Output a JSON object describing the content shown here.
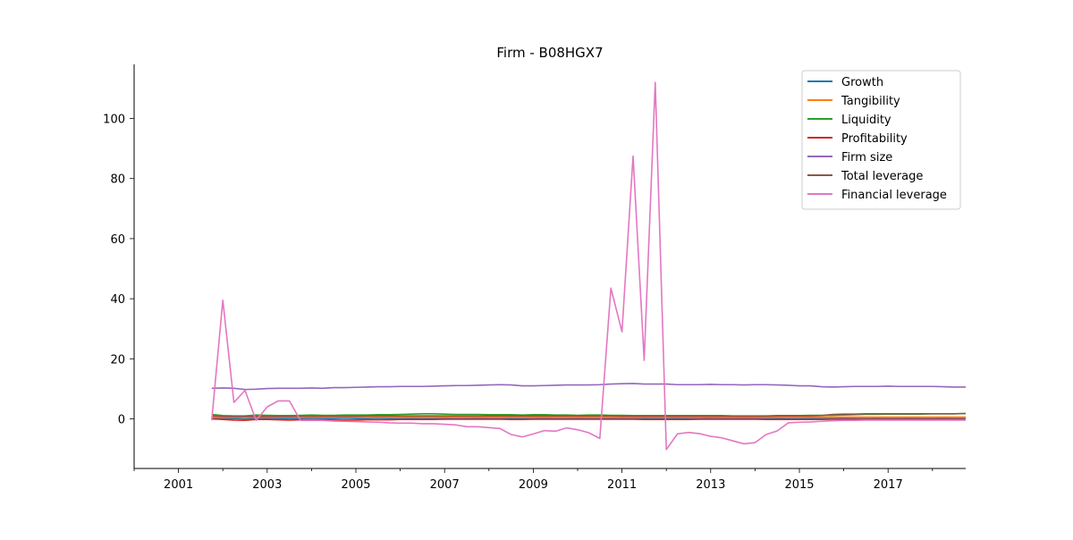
{
  "chart_data": {
    "type": "line",
    "title": "Firm - B08HGX7",
    "xlabel": "",
    "ylabel": "",
    "xlim": [
      2000.0,
      2018.75
    ],
    "ylim": [
      -16.5,
      118
    ],
    "x_ticks": [
      2001,
      2003,
      2005,
      2007,
      2009,
      2011,
      2013,
      2015,
      2017
    ],
    "x_minor_ticks": [
      2000,
      2002,
      2004,
      2006,
      2008,
      2010,
      2012,
      2014,
      2016,
      2018
    ],
    "y_ticks": [
      0,
      20,
      40,
      60,
      80,
      100
    ],
    "grid": false,
    "legend_position": "top-right",
    "x": [
      2001.75,
      2002.0,
      2002.25,
      2002.5,
      2002.75,
      2003.0,
      2003.25,
      2003.5,
      2003.75,
      2004.0,
      2004.25,
      2004.5,
      2004.75,
      2005.0,
      2005.25,
      2005.5,
      2005.75,
      2006.0,
      2006.25,
      2006.5,
      2006.75,
      2007.0,
      2007.25,
      2007.5,
      2007.75,
      2008.0,
      2008.25,
      2008.5,
      2008.75,
      2009.0,
      2009.25,
      2009.5,
      2009.75,
      2010.0,
      2010.25,
      2010.5,
      2010.75,
      2011.0,
      2011.25,
      2011.5,
      2011.75,
      2012.0,
      2012.25,
      2012.5,
      2012.75,
      2013.0,
      2013.25,
      2013.5,
      2013.75,
      2014.0,
      2014.25,
      2014.5,
      2014.75,
      2015.0,
      2015.25,
      2015.5,
      2015.75,
      2016.0,
      2016.25,
      2016.5,
      2016.75,
      2017.0,
      2017.25,
      2017.5,
      2017.75,
      2018.0,
      2018.25,
      2018.5,
      2018.75
    ],
    "series": [
      {
        "name": "Growth",
        "color": "#1f77b4",
        "values": [
          0.2,
          0.1,
          0.1,
          0.0,
          0.1,
          0.2,
          0.1,
          0.1,
          0.1,
          0.2,
          0.1,
          0.1,
          0.2,
          0.1,
          0.1,
          0.2,
          0.1,
          0.1,
          0.2,
          0.1,
          0.1,
          0.2,
          0.1,
          0.1,
          0.2,
          0.1,
          0.1,
          0.2,
          0.1,
          0.1,
          0.2,
          0.1,
          0.1,
          0.2,
          0.1,
          0.1,
          0.2,
          0.1,
          0.1,
          0.2,
          0.1,
          0.1,
          0.2,
          0.1,
          0.1,
          0.2,
          0.1,
          0.1,
          0.2,
          0.1,
          0.1,
          0.2,
          0.1,
          0.1,
          0.2,
          0.1,
          0.1,
          0.2,
          0.1,
          0.1,
          0.2,
          0.1,
          0.1,
          0.2,
          0.1,
          0.1,
          0.2,
          0.1,
          0.1
        ]
      },
      {
        "name": "Tangibility",
        "color": "#ff7f0e",
        "values": [
          0.6,
          0.5,
          0.5,
          0.5,
          0.5,
          0.6,
          0.6,
          0.6,
          0.6,
          0.6,
          0.6,
          0.6,
          0.6,
          0.6,
          0.6,
          0.6,
          0.6,
          0.6,
          0.6,
          0.6,
          0.6,
          0.6,
          0.6,
          0.6,
          0.6,
          0.6,
          0.6,
          0.6,
          0.6,
          0.6,
          0.6,
          0.6,
          0.6,
          0.6,
          0.6,
          0.6,
          0.6,
          0.6,
          0.6,
          0.6,
          0.6,
          0.6,
          0.6,
          0.6,
          0.6,
          0.6,
          0.6,
          0.6,
          0.6,
          0.6,
          0.6,
          0.6,
          0.6,
          0.6,
          0.6,
          0.6,
          0.6,
          0.6,
          0.6,
          0.6,
          0.6,
          0.6,
          0.6,
          0.6,
          0.6,
          0.6,
          0.6,
          0.6,
          0.6
        ]
      },
      {
        "name": "Liquidity",
        "color": "#2ca02c",
        "values": [
          1.5,
          1.1,
          1.0,
          1.0,
          1.3,
          1.2,
          1.1,
          1.1,
          1.2,
          1.3,
          1.2,
          1.2,
          1.3,
          1.3,
          1.3,
          1.4,
          1.4,
          1.5,
          1.6,
          1.7,
          1.7,
          1.6,
          1.5,
          1.5,
          1.5,
          1.4,
          1.4,
          1.4,
          1.3,
          1.4,
          1.4,
          1.3,
          1.3,
          1.2,
          1.3,
          1.3,
          1.2,
          1.2,
          1.1,
          1.1,
          1.1,
          1.1,
          1.1,
          1.1,
          1.1,
          1.1,
          1.1,
          1.0,
          1.0,
          1.0,
          1.0,
          1.1,
          1.1,
          1.1,
          1.2,
          1.2,
          1.2,
          1.3,
          1.4,
          1.5,
          1.5,
          1.6,
          1.6,
          1.6,
          1.6,
          1.7,
          1.7,
          1.7,
          1.8
        ]
      },
      {
        "name": "Profitability",
        "color": "#d62728",
        "values": [
          0.0,
          -0.2,
          -0.4,
          -0.5,
          -0.2,
          -0.2,
          -0.3,
          -0.4,
          -0.3,
          -0.3,
          -0.3,
          -0.4,
          -0.4,
          -0.4,
          -0.3,
          -0.3,
          -0.3,
          -0.2,
          -0.2,
          -0.2,
          -0.2,
          -0.1,
          -0.1,
          -0.1,
          -0.1,
          -0.1,
          -0.1,
          -0.2,
          -0.2,
          -0.1,
          -0.1,
          -0.1,
          -0.1,
          -0.1,
          -0.1,
          -0.1,
          -0.1,
          -0.1,
          -0.1,
          -0.2,
          -0.2,
          -0.2,
          -0.2,
          -0.2,
          -0.1,
          -0.1,
          -0.1,
          -0.1,
          -0.1,
          -0.1,
          -0.2,
          -0.2,
          -0.2,
          -0.2,
          -0.2,
          -0.2,
          -0.1,
          -0.1,
          -0.1,
          -0.1,
          -0.1,
          -0.1,
          -0.1,
          -0.1,
          -0.1,
          -0.1,
          -0.1,
          -0.1,
          -0.1
        ]
      },
      {
        "name": "Firm size",
        "color": "#9467bd",
        "values": [
          10.2,
          10.3,
          10.2,
          9.8,
          9.9,
          10.1,
          10.2,
          10.2,
          10.2,
          10.3,
          10.2,
          10.4,
          10.4,
          10.5,
          10.6,
          10.7,
          10.7,
          10.8,
          10.8,
          10.8,
          10.9,
          11.0,
          11.1,
          11.1,
          11.2,
          11.3,
          11.4,
          11.3,
          11.0,
          11.0,
          11.1,
          11.2,
          11.3,
          11.3,
          11.3,
          11.4,
          11.6,
          11.7,
          11.8,
          11.6,
          11.6,
          11.6,
          11.4,
          11.4,
          11.4,
          11.5,
          11.4,
          11.4,
          11.3,
          11.4,
          11.4,
          11.3,
          11.2,
          11.0,
          11.0,
          10.7,
          10.6,
          10.7,
          10.8,
          10.8,
          10.8,
          10.9,
          10.8,
          10.8,
          10.8,
          10.8,
          10.7,
          10.6,
          10.6
        ]
      },
      {
        "name": "Total leverage",
        "color": "#8c564b",
        "values": [
          1.0,
          0.8,
          0.8,
          0.8,
          0.8,
          0.8,
          0.8,
          0.8,
          0.9,
          0.9,
          0.9,
          0.9,
          0.9,
          0.9,
          1.0,
          1.0,
          1.0,
          1.0,
          1.0,
          1.0,
          1.0,
          1.0,
          1.0,
          1.0,
          1.0,
          1.0,
          1.0,
          1.0,
          1.0,
          1.0,
          1.0,
          1.0,
          1.0,
          1.0,
          1.0,
          1.0,
          1.0,
          0.9,
          0.9,
          0.9,
          0.9,
          0.9,
          0.9,
          0.9,
          0.9,
          0.9,
          0.9,
          0.9,
          0.9,
          0.9,
          0.9,
          1.0,
          1.0,
          1.0,
          1.0,
          1.1,
          1.5,
          1.6,
          1.6,
          1.7,
          1.7,
          1.7,
          1.7,
          1.7,
          1.7,
          1.7,
          1.7,
          1.7,
          1.8
        ]
      },
      {
        "name": "Financial leverage",
        "color": "#e377c2",
        "values": [
          -0.5,
          39.5,
          5.5,
          9.5,
          -0.5,
          4.0,
          6.0,
          6.0,
          -0.5,
          -0.5,
          -0.5,
          -0.7,
          -0.8,
          -0.9,
          -1.0,
          -1.1,
          -1.3,
          -1.4,
          -1.4,
          -1.6,
          -1.6,
          -1.8,
          -2.0,
          -2.6,
          -2.6,
          -2.9,
          -3.2,
          -5.2,
          -6.0,
          -5.0,
          -3.9,
          -4.1,
          -3.0,
          -3.6,
          -4.6,
          -6.5,
          43.5,
          29.0,
          87.5,
          19.5,
          112.0,
          -10.2,
          -5.0,
          -4.5,
          -4.9,
          -5.8,
          -6.3,
          -7.3,
          -8.3,
          -7.9,
          -5.2,
          -4.0,
          -1.3,
          -1.1,
          -1.0,
          -0.8,
          -0.6,
          -0.5,
          -0.5,
          -0.4,
          -0.4,
          -0.4,
          -0.4,
          -0.4,
          -0.4,
          -0.4,
          -0.4,
          -0.4,
          -0.4
        ]
      }
    ]
  }
}
